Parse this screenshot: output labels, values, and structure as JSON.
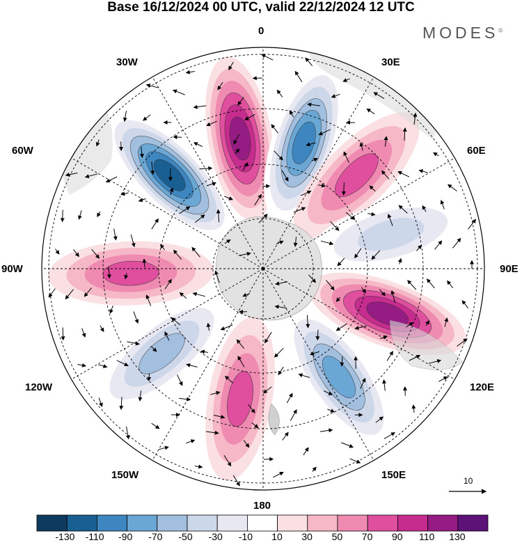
{
  "title": "Base 16/12/2024 00 UTC, valid 22/12/2024 12 UTC",
  "brand": "MODES",
  "brand_mark": "©",
  "longitude_labels": [
    "0",
    "30E",
    "60E",
    "90E",
    "120E",
    "150E",
    "180",
    "150W",
    "120W",
    "90W",
    "60W",
    "30W"
  ],
  "colorbar": {
    "colors": [
      "#0e3a5e",
      "#1a5f91",
      "#3e86bf",
      "#6aa7d4",
      "#a3bfdf",
      "#cdd7ea",
      "#e8e8f2",
      "#ffffff",
      "#fbe0e3",
      "#f6b7c6",
      "#ef8ab0",
      "#e04f9e",
      "#c62b8e",
      "#941c82",
      "#5c1277"
    ],
    "tick_labels": [
      "-130",
      "-110",
      "-90",
      "-70",
      "-50",
      "-30",
      "-10",
      "10",
      "30",
      "50",
      "70",
      "90",
      "110",
      "130"
    ]
  },
  "vector_scale_label": "10",
  "anomaly_centers": [
    {
      "lon": -45,
      "value": -130
    },
    {
      "lon": -10,
      "value": 120
    },
    {
      "lon": 18,
      "value": -120
    },
    {
      "lon": 45,
      "value": 80
    },
    {
      "lon": 75,
      "value": -50
    },
    {
      "lon": 110,
      "value": 110
    },
    {
      "lon": 145,
      "value": -100
    },
    {
      "lon": 190,
      "value": 70
    },
    {
      "lon": 230,
      "value": -70
    },
    {
      "lon": 268,
      "value": 80
    }
  ]
}
